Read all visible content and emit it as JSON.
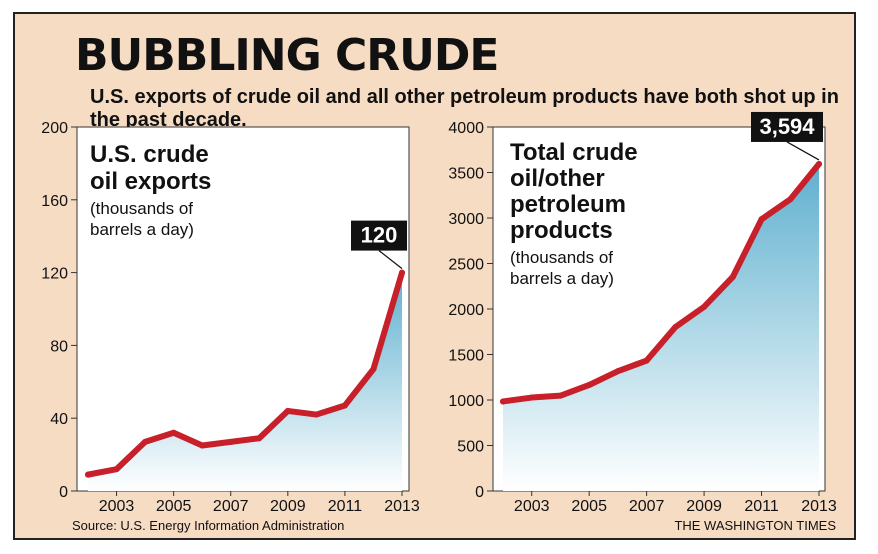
{
  "header": {
    "title": "BUBBLING CRUDE",
    "subtitle": "U.S. exports of crude oil and all other petroleum products have both shot up in the past decade."
  },
  "footer": {
    "source": "Source: U.S. Energy Information Administration",
    "credit": "THE WASHINGTON TIMES"
  },
  "colors": {
    "line": "#c8202a",
    "area_top": "#5fb0cf",
    "area_bottom": "#ffffff",
    "background": "#f7dcc4",
    "callout": "#111111"
  },
  "chart_data": [
    {
      "type": "area",
      "title_lines": [
        "U.S. crude",
        "oil exports"
      ],
      "units_lines": [
        "(thousands of",
        "barrels a day)"
      ],
      "x": [
        2002,
        2003,
        2004,
        2005,
        2006,
        2007,
        2008,
        2009,
        2010,
        2011,
        2012,
        2013
      ],
      "values": [
        9,
        12,
        27,
        32,
        25,
        27,
        29,
        44,
        42,
        47,
        67,
        120
      ],
      "xticks": [
        "2003",
        "2005",
        "2007",
        "2009",
        "2011",
        "2013"
      ],
      "yticks": [
        "0",
        "40",
        "80",
        "120",
        "160",
        "200"
      ],
      "ylim": [
        0,
        200
      ],
      "callout": "120",
      "grid": false
    },
    {
      "type": "area",
      "title_lines": [
        "Total crude",
        "oil/other",
        "petroleum",
        "products"
      ],
      "units_lines": [
        "(thousands of",
        "barrels a day)"
      ],
      "x": [
        2002,
        2003,
        2004,
        2005,
        2006,
        2007,
        2008,
        2009,
        2010,
        2011,
        2012,
        2013
      ],
      "values": [
        984,
        1027,
        1048,
        1165,
        1317,
        1433,
        1802,
        2024,
        2353,
        2986,
        3205,
        3594
      ],
      "xticks": [
        "2003",
        "2005",
        "2007",
        "2009",
        "2011",
        "2013"
      ],
      "yticks": [
        "0",
        "500",
        "1000",
        "1500",
        "2000",
        "2500",
        "3000",
        "3500",
        "4000"
      ],
      "ylim": [
        0,
        4000
      ],
      "callout": "3,594",
      "grid": false
    }
  ]
}
